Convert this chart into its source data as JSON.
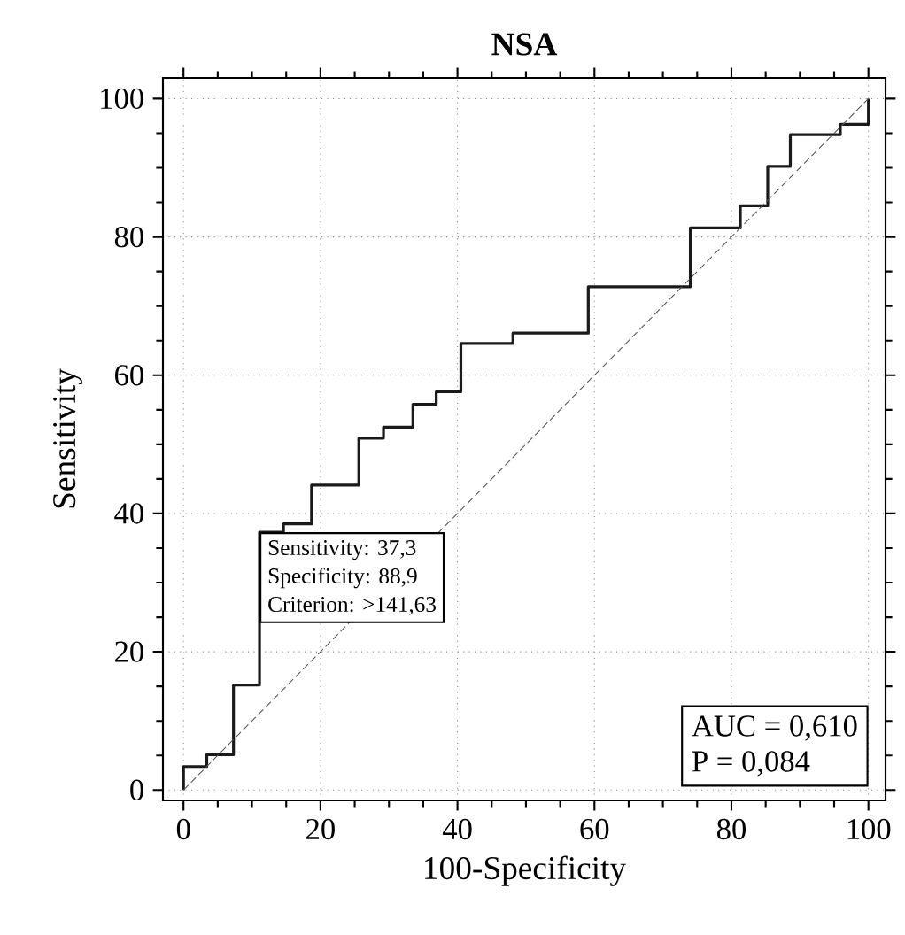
{
  "chart_data": {
    "type": "step",
    "title": "NSA",
    "xlabel": "100-Specificity",
    "ylabel": "Sensitivity",
    "xlim": [
      -3,
      102.5
    ],
    "ylim": [
      -1.5,
      103
    ],
    "xticks": [
      0,
      20,
      40,
      60,
      80,
      100
    ],
    "yticks": [
      0,
      20,
      40,
      60,
      80,
      100
    ],
    "grid": true,
    "marker": "none",
    "series": [
      {
        "color": "#1a1a1a",
        "line_style": "solid",
        "x": [
          0,
          0,
          3.4,
          7.3,
          11.1,
          14.6,
          18.7,
          25.6,
          29.2,
          33.5,
          36.9,
          40.5,
          48.1,
          59.1,
          74.0,
          81.3,
          85.3,
          88.6,
          95.9,
          100
        ],
        "values": [
          0,
          3.4,
          5.1,
          15.2,
          37.3,
          38.5,
          44.1,
          50.9,
          52.5,
          55.8,
          57.6,
          64.6,
          66.1,
          72.8,
          81.3,
          84.5,
          90.2,
          94.8,
          96.3,
          100
        ]
      },
      {
        "type": "line",
        "color": "#555555",
        "line_style": "dashed",
        "x": [
          0,
          100
        ],
        "values": [
          0,
          100
        ]
      }
    ],
    "annotations": [
      "Sensitivity: 37,3",
      "Specificity: 88,9",
      "Criterion: >141,63",
      "AUC = 0,610",
      "P = 0,084"
    ]
  }
}
